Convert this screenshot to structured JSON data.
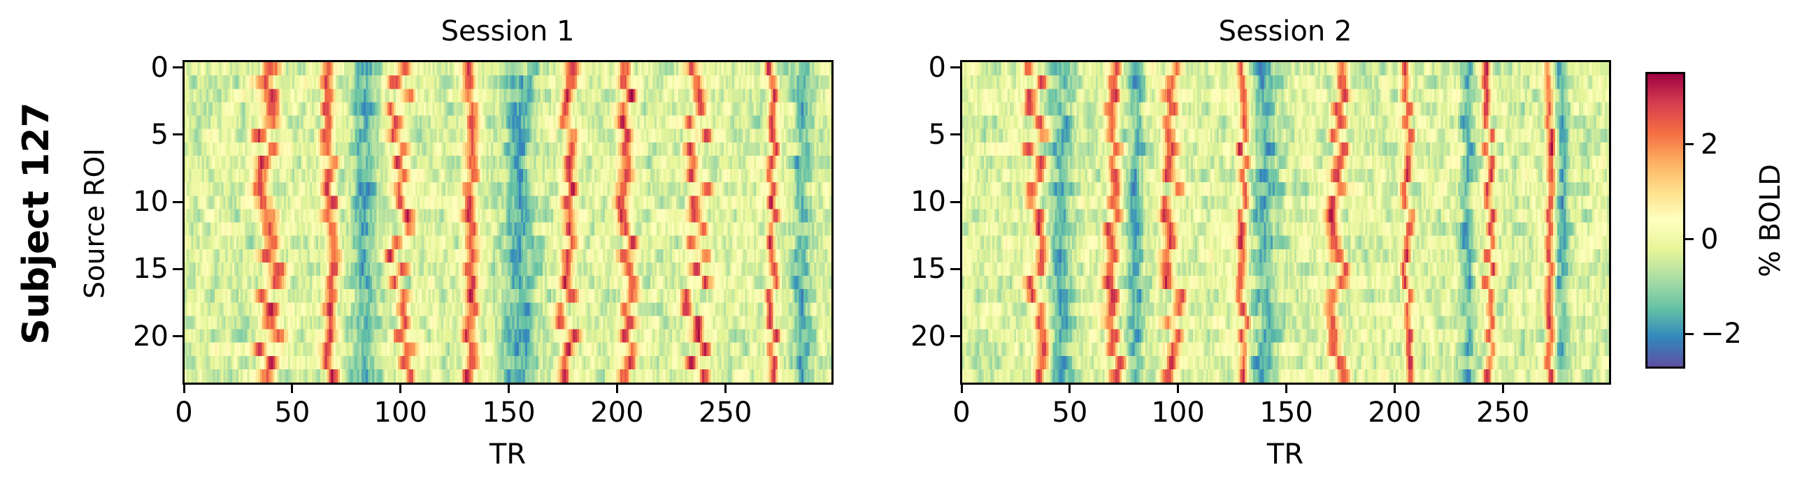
{
  "figure": {
    "suptitle_left": "Subject 127",
    "colorbar": {
      "label": "% BOLD",
      "colormap": "Spectral_r",
      "vmin": -2.7,
      "vmax": 3.5,
      "ticks": [
        2,
        0,
        -2
      ],
      "tick_labels": [
        "2",
        "0",
        "−2"
      ],
      "colors": [
        "#5e4fa2",
        "#3288bd",
        "#66c2a5",
        "#abdda4",
        "#e6f598",
        "#ffffbf",
        "#fee08b",
        "#fdae61",
        "#f46d43",
        "#d53e4f",
        "#9e0142"
      ]
    }
  },
  "chart_data": [
    {
      "type": "heatmap",
      "title": "Session 1",
      "xlabel": "TR",
      "ylabel": "Source ROI",
      "x_range": [
        0,
        300
      ],
      "y_range": [
        0,
        23
      ],
      "n_rows": 24,
      "n_cols": 300,
      "xticks": [
        0,
        50,
        100,
        150,
        200,
        250
      ],
      "xtick_labels": [
        "0",
        "50",
        "100",
        "150",
        "200",
        "250"
      ],
      "yticks": [
        0,
        5,
        10,
        15,
        20
      ],
      "ytick_labels": [
        "0",
        "5",
        "10",
        "15",
        "20"
      ],
      "value_label": "% BOLD",
      "positive_bands_tr": [
        {
          "center": 38,
          "width": 4,
          "wave": 5
        },
        {
          "center": 67,
          "width": 3,
          "wave": 2
        },
        {
          "center": 99,
          "width": 3,
          "wave": 5
        },
        {
          "center": 132,
          "width": 3,
          "wave": 2
        },
        {
          "center": 177,
          "width": 3,
          "wave": 4
        },
        {
          "center": 205,
          "width": 3,
          "wave": 3
        },
        {
          "center": 237,
          "width": 3,
          "wave": 5
        },
        {
          "center": 272,
          "width": 2,
          "wave": 2
        }
      ],
      "negative_bands_tr": [
        {
          "center": 83,
          "width": 6,
          "wave": 1
        },
        {
          "center": 155,
          "width": 8,
          "wave": 2
        },
        {
          "center": 286,
          "width": 4,
          "wave": 1
        }
      ]
    },
    {
      "type": "heatmap",
      "title": "Session 2",
      "xlabel": "TR",
      "ylabel": "",
      "x_range": [
        0,
        300
      ],
      "y_range": [
        0,
        23
      ],
      "n_rows": 24,
      "n_cols": 300,
      "xticks": [
        0,
        50,
        100,
        150,
        200,
        250
      ],
      "xtick_labels": [
        "0",
        "50",
        "100",
        "150",
        "200",
        "250"
      ],
      "yticks": [
        0,
        5,
        10,
        15,
        20
      ],
      "ytick_labels": [
        "0",
        "5",
        "10",
        "15",
        "20"
      ],
      "value_label": "% BOLD",
      "positive_bands_tr": [
        {
          "center": 34,
          "width": 3,
          "wave": 4
        },
        {
          "center": 70,
          "width": 3,
          "wave": 3
        },
        {
          "center": 97,
          "width": 3,
          "wave": 4
        },
        {
          "center": 130,
          "width": 2,
          "wave": 2
        },
        {
          "center": 174,
          "width": 3,
          "wave": 4
        },
        {
          "center": 206,
          "width": 2,
          "wave": 2
        },
        {
          "center": 244,
          "width": 2,
          "wave": 2
        },
        {
          "center": 272,
          "width": 2,
          "wave": 1
        }
      ],
      "negative_bands_tr": [
        {
          "center": 45,
          "width": 6,
          "wave": 2
        },
        {
          "center": 80,
          "width": 4,
          "wave": 1
        },
        {
          "center": 140,
          "width": 6,
          "wave": 2
        },
        {
          "center": 234,
          "width": 3,
          "wave": 1
        },
        {
          "center": 278,
          "width": 3,
          "wave": 1
        }
      ]
    }
  ]
}
